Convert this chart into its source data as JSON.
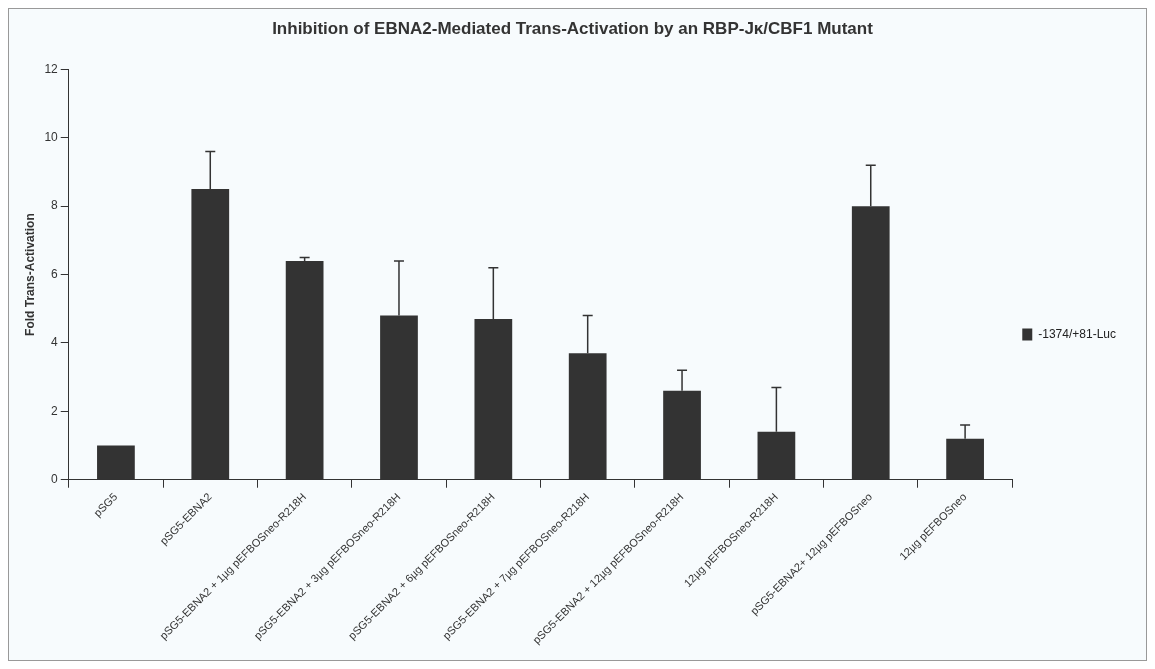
{
  "chart_data": {
    "type": "bar",
    "title": "Inhibition of EBNA2-Mediated Trans-Activation by an RBP-Jκ/CBF1 Mutant",
    "ylabel": "Fold Trans-Activation",
    "categories": [
      "pSG5",
      "pSG5-EBNA2",
      "pSG5-EBNA2 + 1µg pEFBOSneo-R218H",
      "pSG5-EBNA2 + 3µg pEFBOSneo-R218H",
      "pSG5-EBNA2 + 6µg pEFBOSneo-R218H",
      "pSG5-EBNA2 + 7µg pEFBOSneo-R218H",
      "pSG5-EBNA2 + 12µg pEFBOSneo-R218H",
      "12µg pEFBOSneo-R218H",
      "pSG5-EBNA2+ 12µg pEFBOSneo",
      "12µg pEFBOSneo"
    ],
    "series": [
      {
        "name": "-1374/+81-Luc",
        "color": "#333333",
        "values": [
          1.0,
          8.5,
          6.4,
          4.8,
          4.7,
          3.7,
          2.6,
          1.4,
          8.0,
          1.2
        ],
        "errors": [
          null,
          [
            8.5,
            9.6
          ],
          [
            6.4,
            6.5
          ],
          [
            4.8,
            6.4
          ],
          [
            4.7,
            6.2
          ],
          [
            3.7,
            4.8
          ],
          [
            2.6,
            3.2
          ],
          [
            1.4,
            2.7
          ],
          [
            8.0,
            9.2
          ],
          [
            1.2,
            1.6
          ]
        ]
      }
    ],
    "ylim": [
      0,
      12
    ],
    "yticks": [
      0,
      2,
      4,
      6,
      8,
      10,
      12
    ],
    "grid": false,
    "legend": "right"
  }
}
